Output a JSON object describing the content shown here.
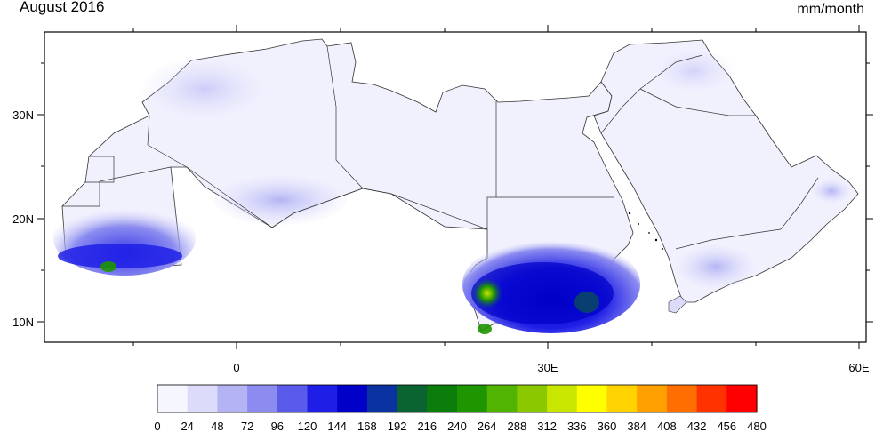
{
  "header": {
    "title_left": "August 2016",
    "title_right": "mm/month"
  },
  "map": {
    "lon_labels": [
      "0",
      "30E",
      "60E"
    ],
    "lat_labels": [
      "30N",
      "20N",
      "10N"
    ]
  },
  "colorbar": {
    "labels": [
      "0",
      "24",
      "48",
      "72",
      "96",
      "120",
      "144",
      "168",
      "192",
      "216",
      "240",
      "264",
      "288",
      "312",
      "336",
      "360",
      "384",
      "408",
      "432",
      "456",
      "480"
    ],
    "colors": [
      "#f6f6ff",
      "#dcdcfa",
      "#b4b4f5",
      "#8c8cf0",
      "#5a5aeb",
      "#1e1ee6",
      "#0000c8",
      "#0a32a0",
      "#0a6432",
      "#0a7d0a",
      "#1e9600",
      "#50b400",
      "#8cc800",
      "#c8e600",
      "#ffff00",
      "#ffd200",
      "#ffa000",
      "#ff6e00",
      "#ff3200",
      "#ff0000"
    ]
  }
}
